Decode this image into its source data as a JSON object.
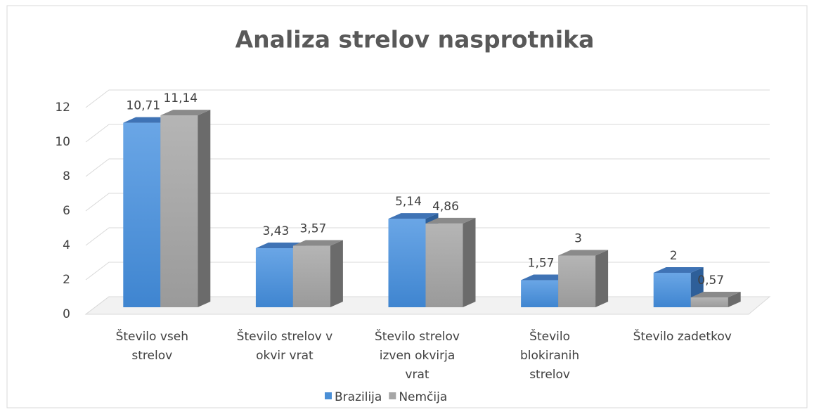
{
  "chart_data": {
    "type": "bar3d",
    "title": "Analiza strelov nasprotnika",
    "categories": [
      "Število vseh strelov",
      "Število strelov v okvir vrat",
      "Število strelov izven okvirja vrat",
      "Število blokiranih strelov",
      "Število zadetkov"
    ],
    "series": [
      {
        "name": "Brazilija",
        "color": "#4a8fd6",
        "values": [
          10.71,
          3.43,
          5.14,
          1.57,
          2
        ],
        "value_labels": [
          "10,71",
          "3,43",
          "5,14",
          "1,57",
          "2"
        ]
      },
      {
        "name": "Nemčija",
        "color": "#a6a6a6",
        "values": [
          11.14,
          3.57,
          4.86,
          3,
          0.57
        ],
        "value_labels": [
          "11,14",
          "3,57",
          "4,86",
          "3",
          "0,57"
        ]
      }
    ],
    "ylim": [
      0,
      12
    ],
    "yticks": [
      0,
      2,
      4,
      6,
      8,
      10,
      12
    ],
    "grid": true,
    "legend": "bottom"
  }
}
